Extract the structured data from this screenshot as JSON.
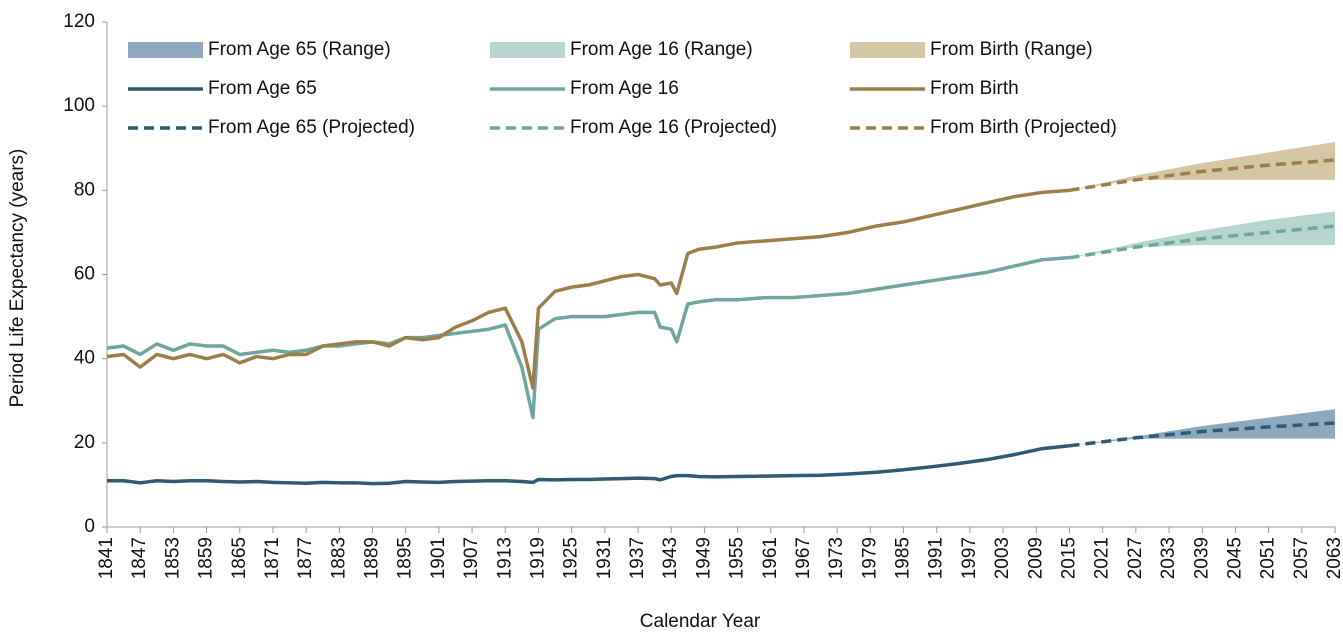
{
  "chart_data": {
    "type": "line",
    "xlabel": "Calendar Year",
    "ylabel": "Period Life Expectancy (years)",
    "xlim": [
      1841,
      2063
    ],
    "ylim": [
      0,
      120
    ],
    "xticks": [
      1841,
      1847,
      1853,
      1859,
      1865,
      1871,
      1877,
      1883,
      1889,
      1895,
      1901,
      1907,
      1913,
      1919,
      1925,
      1931,
      1937,
      1943,
      1949,
      1955,
      1961,
      1967,
      1973,
      1979,
      1985,
      1991,
      1997,
      2003,
      2009,
      2015,
      2021,
      2027,
      2033,
      2039,
      2045,
      2051,
      2057,
      2063
    ],
    "yticks": [
      0,
      20,
      40,
      60,
      80,
      100,
      120
    ],
    "grid": false,
    "legend": "top-left",
    "series": [
      {
        "name": "From Age 65 (Range)",
        "style": "band",
        "color": "#8fa8bd",
        "x": [
          2015,
          2027,
          2039,
          2051,
          2063
        ],
        "high": [
          19.3,
          21.5,
          24,
          26,
          28
        ],
        "low": [
          19.3,
          21,
          21,
          21,
          21
        ]
      },
      {
        "name": "From Age 16 (Range)",
        "style": "band",
        "color": "#b8d6cf",
        "x": [
          2015,
          2027,
          2039,
          2051,
          2063
        ],
        "high": [
          64,
          67.5,
          70.5,
          73,
          75
        ],
        "low": [
          64,
          66.5,
          67,
          67,
          67
        ]
      },
      {
        "name": "From Birth (Range)",
        "style": "band",
        "color": "#d5c6a6",
        "x": [
          2015,
          2027,
          2039,
          2051,
          2063
        ],
        "high": [
          80,
          83.5,
          86.5,
          89,
          91.5
        ],
        "low": [
          80,
          82.5,
          82.5,
          82.5,
          82.5
        ]
      },
      {
        "name": "From Age 65",
        "style": "solid",
        "color": "#2e5a73",
        "x": [
          1841,
          1844,
          1847,
          1850,
          1853,
          1856,
          1859,
          1862,
          1865,
          1868,
          1871,
          1874,
          1877,
          1880,
          1883,
          1886,
          1889,
          1892,
          1895,
          1898,
          1901,
          1904,
          1907,
          1910,
          1913,
          1916,
          1918,
          1919,
          1922,
          1925,
          1928,
          1931,
          1934,
          1937,
          1940,
          1941,
          1943,
          1944,
          1946,
          1948,
          1951,
          1955,
          1960,
          1965,
          1970,
          1975,
          1980,
          1985,
          1990,
          1995,
          2000,
          2005,
          2010,
          2015
        ],
        "values": [
          11,
          11,
          10.5,
          11,
          10.8,
          11,
          11,
          10.8,
          10.7,
          10.8,
          10.6,
          10.5,
          10.4,
          10.6,
          10.5,
          10.5,
          10.3,
          10.4,
          10.8,
          10.7,
          10.6,
          10.8,
          10.9,
          11,
          11,
          10.8,
          10.6,
          11.3,
          11.2,
          11.3,
          11.3,
          11.4,
          11.5,
          11.6,
          11.5,
          11.2,
          12,
          12.2,
          12.2,
          12,
          11.9,
          12,
          12.1,
          12.2,
          12.3,
          12.6,
          13,
          13.6,
          14.3,
          15.1,
          16,
          17.2,
          18.6,
          19.3
        ]
      },
      {
        "name": "From Age 16",
        "style": "solid",
        "color": "#6ea79f",
        "x": [
          1841,
          1844,
          1847,
          1850,
          1853,
          1856,
          1859,
          1862,
          1865,
          1868,
          1871,
          1874,
          1877,
          1880,
          1883,
          1886,
          1889,
          1892,
          1895,
          1898,
          1901,
          1904,
          1907,
          1910,
          1913,
          1916,
          1918,
          1919,
          1922,
          1925,
          1928,
          1931,
          1934,
          1937,
          1940,
          1941,
          1943,
          1944,
          1946,
          1948,
          1951,
          1955,
          1960,
          1965,
          1970,
          1975,
          1980,
          1985,
          1990,
          1995,
          2000,
          2005,
          2010,
          2015
        ],
        "values": [
          42.5,
          43,
          41,
          43.5,
          42,
          43.5,
          43,
          43,
          41,
          41.5,
          42,
          41.5,
          42,
          43,
          43,
          43.5,
          44,
          43.5,
          45,
          45,
          45.5,
          46,
          46.5,
          47,
          48,
          38,
          26,
          47,
          49.5,
          50,
          50,
          50,
          50.5,
          51,
          51,
          47.5,
          47,
          44,
          53,
          53.5,
          54,
          54,
          54.5,
          54.5,
          55,
          55.5,
          56.5,
          57.5,
          58.5,
          59.5,
          60.5,
          62,
          63.5,
          64
        ]
      },
      {
        "name": "From Birth",
        "style": "solid",
        "color": "#9c7e4b",
        "x": [
          1841,
          1844,
          1847,
          1850,
          1853,
          1856,
          1859,
          1862,
          1865,
          1868,
          1871,
          1874,
          1877,
          1880,
          1883,
          1886,
          1889,
          1892,
          1895,
          1898,
          1901,
          1904,
          1907,
          1910,
          1913,
          1916,
          1918,
          1919,
          1922,
          1925,
          1928,
          1931,
          1934,
          1937,
          1940,
          1941,
          1943,
          1944,
          1946,
          1948,
          1951,
          1955,
          1960,
          1965,
          1970,
          1975,
          1980,
          1985,
          1990,
          1995,
          2000,
          2005,
          2010,
          2015
        ],
        "values": [
          40.5,
          41,
          38,
          41,
          40,
          41,
          40,
          41,
          39,
          40.5,
          40,
          41,
          41,
          43,
          43.5,
          44,
          44,
          43,
          45,
          44.5,
          45,
          47.5,
          49,
          51,
          52,
          44,
          33,
          52,
          56,
          57,
          57.5,
          58.5,
          59.5,
          60,
          59,
          57.5,
          58,
          55.5,
          65,
          66,
          66.5,
          67.5,
          68,
          68.5,
          69,
          70,
          71.5,
          72.5,
          74,
          75.5,
          77,
          78.5,
          79.5,
          80
        ]
      },
      {
        "name": "From Age 65 (Projected)",
        "style": "dashed",
        "color": "#2e5a73",
        "x": [
          2015,
          2027,
          2039,
          2051,
          2063
        ],
        "values": [
          19.3,
          21.2,
          22.7,
          23.8,
          24.7
        ]
      },
      {
        "name": "From Age 16 (Projected)",
        "style": "dashed",
        "color": "#6ea79f",
        "x": [
          2015,
          2027,
          2039,
          2051,
          2063
        ],
        "values": [
          64,
          66.5,
          68.5,
          70,
          71.5
        ]
      },
      {
        "name": "From Birth (Projected)",
        "style": "dashed",
        "color": "#9c7e4b",
        "x": [
          2015,
          2027,
          2039,
          2051,
          2063
        ],
        "values": [
          80,
          82.5,
          84.5,
          86,
          87.2
        ]
      }
    ]
  }
}
